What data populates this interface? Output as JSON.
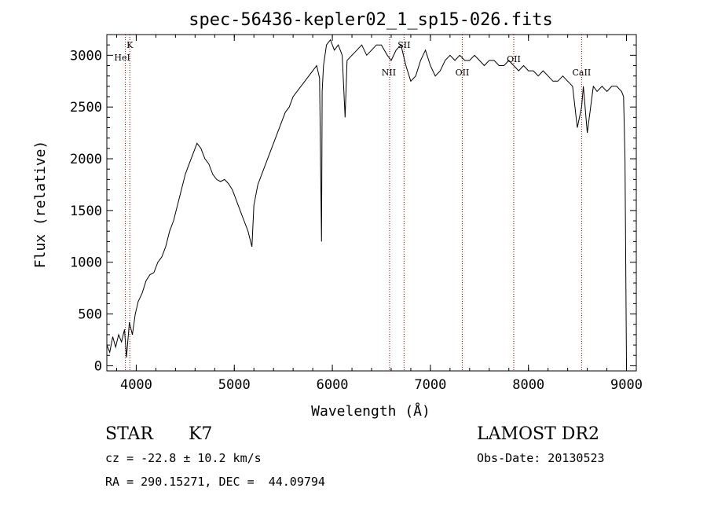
{
  "chart_data": {
    "type": "line",
    "title": "spec-56436-kepler02_1_sp15-026.fits",
    "xlabel": "Wavelength (Å)",
    "ylabel": "Flux (relative)",
    "xlim": [
      3700,
      9100
    ],
    "ylim": [
      -50,
      3200
    ],
    "xticks": [
      4000,
      5000,
      6000,
      7000,
      8000,
      9000
    ],
    "yticks": [
      0,
      500,
      1000,
      1500,
      2000,
      2500,
      3000
    ],
    "series": [
      {
        "x": [
          3700,
          3730,
          3760,
          3790,
          3820,
          3850,
          3880,
          3900,
          3930,
          3960,
          3990,
          4020,
          4060,
          4100,
          4140,
          4180,
          4220,
          4260,
          4300,
          4340,
          4380,
          4420,
          4460,
          4500,
          4540,
          4580,
          4620,
          4660,
          4700,
          4740,
          4780,
          4820,
          4860,
          4900,
          4940,
          4980,
          5020,
          5060,
          5100,
          5140,
          5180,
          5200,
          5240,
          5280,
          5320,
          5360,
          5400,
          5440,
          5480,
          5520,
          5560,
          5600,
          5640,
          5680,
          5720,
          5760,
          5800,
          5840,
          5870,
          5890,
          5896,
          5910,
          5940,
          5980,
          6020,
          6060,
          6100,
          6130,
          6150,
          6200,
          6250,
          6300,
          6350,
          6400,
          6450,
          6500,
          6560,
          6600,
          6650,
          6700,
          6750,
          6800,
          6850,
          6900,
          6950,
          7000,
          7050,
          7100,
          7150,
          7200,
          7250,
          7300,
          7350,
          7400,
          7450,
          7500,
          7550,
          7600,
          7650,
          7700,
          7750,
          7800,
          7850,
          7900,
          7950,
          8000,
          8050,
          8100,
          8150,
          8200,
          8250,
          8300,
          8350,
          8400,
          8450,
          8498,
          8542,
          8560,
          8600,
          8662,
          8700,
          8750,
          8800,
          8850,
          8900,
          8950,
          8970,
          8985,
          9000
        ],
        "y": [
          200,
          130,
          280,
          180,
          300,
          230,
          350,
          80,
          420,
          300,
          500,
          620,
          700,
          820,
          880,
          900,
          1000,
          1050,
          1150,
          1300,
          1400,
          1550,
          1700,
          1850,
          1950,
          2050,
          2150,
          2100,
          2000,
          1950,
          1850,
          1800,
          1780,
          1800,
          1760,
          1700,
          1600,
          1500,
          1400,
          1300,
          1150,
          1550,
          1750,
          1850,
          1950,
          2050,
          2150,
          2250,
          2350,
          2450,
          2500,
          2600,
          2650,
          2700,
          2750,
          2800,
          2850,
          2900,
          2780,
          1200,
          2650,
          2900,
          3100,
          3150,
          3050,
          3100,
          3000,
          2400,
          2950,
          3000,
          3050,
          3100,
          3000,
          3050,
          3100,
          3100,
          3000,
          2950,
          3050,
          3100,
          2900,
          2750,
          2800,
          2950,
          3050,
          2900,
          2800,
          2850,
          2950,
          3000,
          2950,
          3000,
          2950,
          2950,
          3000,
          2950,
          2900,
          2950,
          2950,
          2900,
          2900,
          2950,
          2900,
          2850,
          2900,
          2850,
          2850,
          2800,
          2850,
          2800,
          2750,
          2750,
          2800,
          2750,
          2700,
          2300,
          2500,
          2700,
          2250,
          2700,
          2650,
          2700,
          2650,
          2700,
          2700,
          2650,
          2600,
          2000,
          0
        ]
      }
    ],
    "line_markers": [
      {
        "label": "K",
        "x": 3934
      },
      {
        "label": "HeI",
        "x": 3889
      },
      {
        "label": "NII",
        "x": 6584
      },
      {
        "label": "SII",
        "x": 6731
      },
      {
        "label": "OII",
        "x": 7325
      },
      {
        "label": "OII",
        "x": 7850
      },
      {
        "label": "CaII",
        "x": 8542
      }
    ],
    "grid": false,
    "line_color": "#000000",
    "marker_color": "#8b0000"
  },
  "info": {
    "object_class": "STAR",
    "subclass": "K7",
    "survey": "LAMOST DR2",
    "cz": "cz = -22.8 ± 10.2 km/s",
    "obs_date": "Obs-Date: 20130523",
    "coords": "RA = 290.15271, DEC =  44.09794"
  }
}
